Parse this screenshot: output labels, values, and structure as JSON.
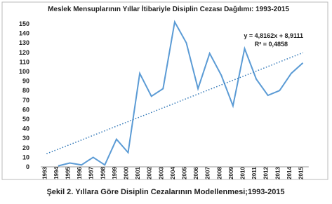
{
  "chart_data": {
    "type": "line",
    "title": "Meslek Mensuplarının Yıllar İtibariyle Disiplin Cezası Dağılımı: 1993-2015",
    "caption": "Şekil 2. Yıllara Göre Disiplin Cezalarının Modellenmesi;1993-2015",
    "categories": [
      "1993",
      "1994",
      "1995",
      "1996",
      "1997",
      "1998",
      "1999",
      "2000",
      "2001",
      "2002",
      "2003",
      "2004",
      "2005",
      "2006",
      "2007",
      "2008",
      "2009",
      "2010",
      "2011",
      "2012",
      "2013",
      "2014",
      "2015"
    ],
    "series": [
      {
        "name": "Disiplin Cezası",
        "color": "#5b9bd5",
        "values": [
          null,
          1,
          4,
          2,
          10,
          2,
          29,
          15,
          98,
          74,
          82,
          152,
          130,
          82,
          119,
          96,
          64,
          124,
          92,
          75,
          80,
          98,
          109
        ]
      }
    ],
    "trendline": {
      "equation": "y = 4,8162x + 8,9111",
      "r2": "R² = 0,4858",
      "slope": 4.8162,
      "intercept": 8.9111,
      "color": "#2e75b6"
    },
    "ylim": [
      0,
      160
    ],
    "yticks": [
      0,
      10,
      20,
      30,
      40,
      50,
      60,
      70,
      80,
      90,
      100,
      110,
      120,
      130,
      140,
      150
    ],
    "grid": false
  }
}
